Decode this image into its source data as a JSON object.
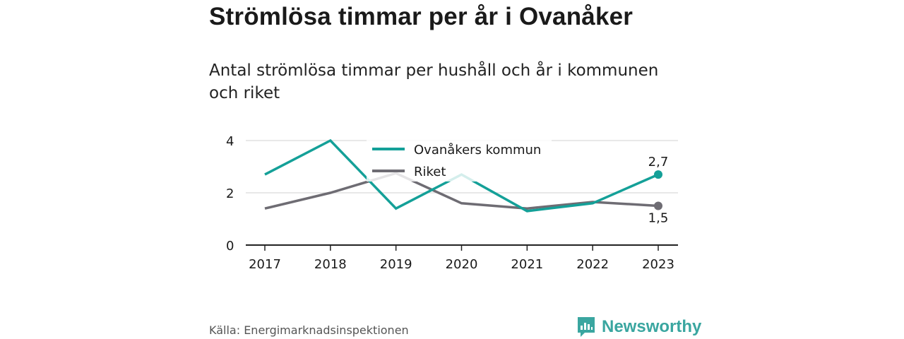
{
  "title": "Strömlösa timmar per år i Ovanåker",
  "subtitle": "Antal strömlösa timmar per hushåll och år i kommunen och riket",
  "source": "Källa: Energimarknadsinspektionen",
  "brand": {
    "name": "Newsworthy",
    "icon": "newsworthy-logo-icon",
    "color": "#3aa6a0"
  },
  "chart_data": {
    "type": "line",
    "title": "Strömlösa timmar per år i Ovanåker",
    "x": [
      "2017",
      "2018",
      "2019",
      "2020",
      "2021",
      "2022",
      "2023"
    ],
    "ylim": [
      0,
      4
    ],
    "yticks": [
      "0",
      "2",
      "4"
    ],
    "grid": true,
    "legend": "top-center",
    "series": [
      {
        "name": "Ovanåkers kommun",
        "color": "#14a098",
        "values": [
          2.7,
          4.0,
          1.4,
          2.7,
          1.3,
          1.6,
          2.7
        ],
        "end_label": "2,7"
      },
      {
        "name": "Riket",
        "color": "#6e6c73",
        "values": [
          1.4,
          2.0,
          2.75,
          1.6,
          1.4,
          1.65,
          1.5
        ],
        "end_label": "1,5"
      }
    ]
  }
}
